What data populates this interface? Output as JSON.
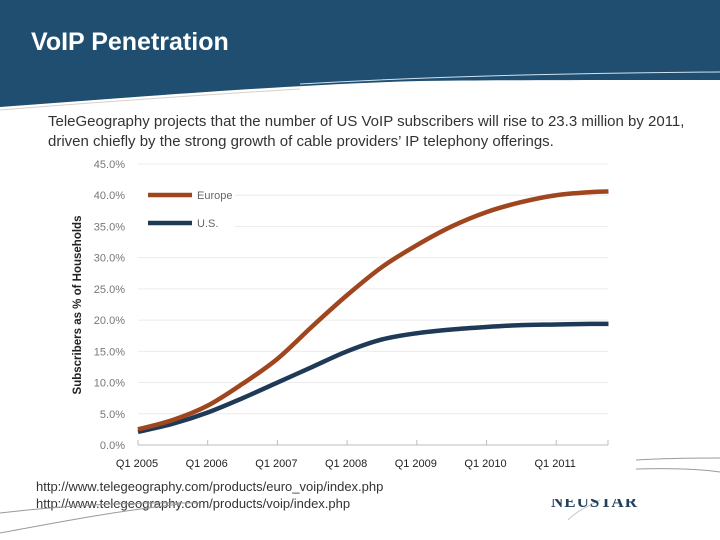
{
  "header": {
    "title": "VoIP Penetration",
    "background_color": "#1f4e70"
  },
  "intro_text": "TeleGeography projects that the number of US VoIP subscribers will rise to 23.3 million by 2011, driven chiefly by the strong growth of cable providers’ IP telephony offerings.",
  "sources": [
    "http://www.telegeography.com/products/euro_voip/index.php",
    "http://www.telegeography.com/products/voip/index.php"
  ],
  "logo": {
    "text": "NEUSTAR",
    "mark": "™"
  },
  "chart_data": {
    "type": "line",
    "title": "",
    "xlabel": "",
    "ylabel": "Subscribers as % of Households",
    "ylim": [
      0,
      45
    ],
    "yticks": [
      0,
      5,
      10,
      15,
      20,
      25,
      30,
      35,
      40,
      45
    ],
    "ytick_labels": [
      "0.0%",
      "5.0%",
      "10.0%",
      "15.0%",
      "20.0%",
      "25.0%",
      "30.0%",
      "35.0%",
      "40.0%",
      "45.0%"
    ],
    "xlim": [
      2005.0,
      2011.75
    ],
    "xticks": [
      2005,
      2006,
      2007,
      2008,
      2009,
      2010,
      2011
    ],
    "xtick_labels": [
      "Q1 2005",
      "Q1 2006",
      "Q1 2007",
      "Q1 2008",
      "Q1 2009",
      "Q1 2010",
      "Q1 2011"
    ],
    "grid": "horizontal",
    "legend_position": "top-left",
    "x": [
      2005.0,
      2005.5,
      2006.0,
      2006.5,
      2007.0,
      2007.5,
      2008.0,
      2008.5,
      2009.0,
      2009.5,
      2010.0,
      2010.5,
      2011.0,
      2011.5,
      2011.75
    ],
    "series": [
      {
        "name": "Europe",
        "color": "#a0461f",
        "values": [
          2.5,
          4.0,
          6.3,
          9.8,
          13.8,
          19.0,
          24.0,
          28.5,
          32.0,
          35.0,
          37.3,
          38.9,
          40.0,
          40.5,
          40.6
        ]
      },
      {
        "name": "U.S.",
        "color": "#1f3a57",
        "values": [
          2.1,
          3.4,
          5.2,
          7.5,
          10.0,
          12.5,
          15.0,
          16.9,
          17.9,
          18.5,
          18.9,
          19.2,
          19.3,
          19.4,
          19.4
        ]
      }
    ]
  }
}
